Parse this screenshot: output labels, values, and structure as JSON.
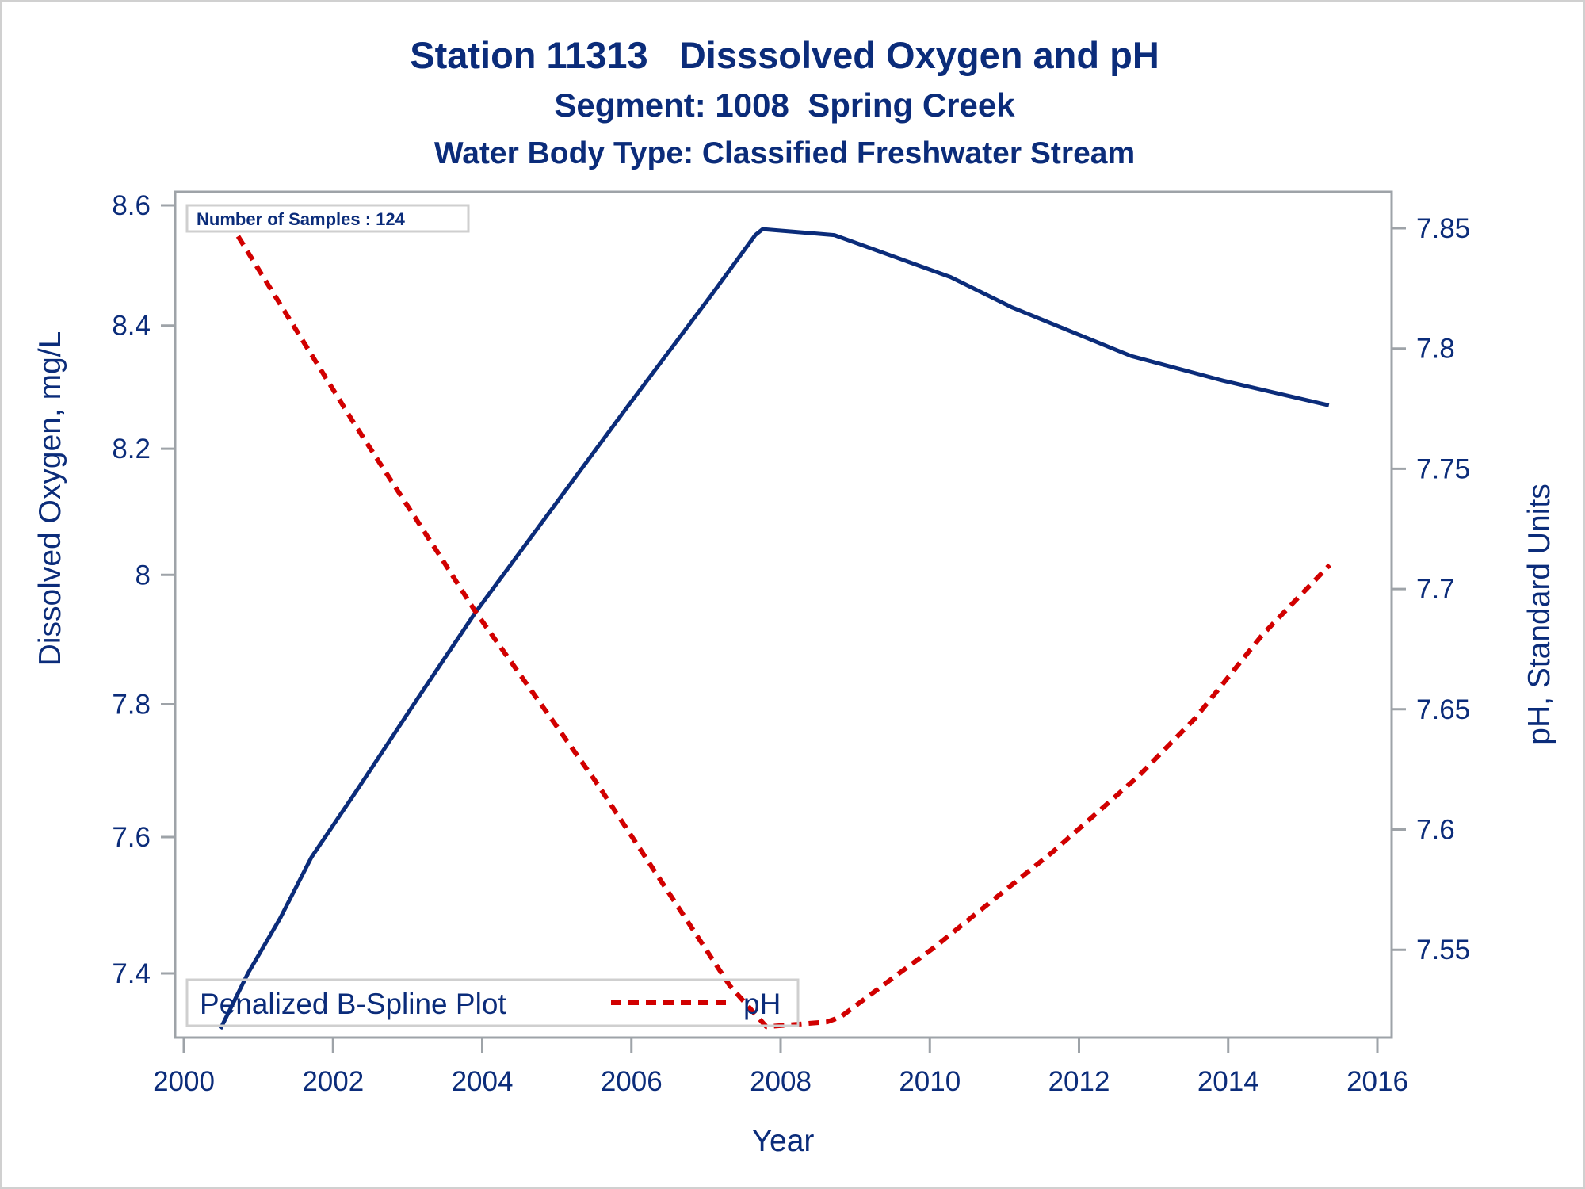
{
  "chart_data": {
    "type": "line",
    "title": "Station 11313   Disssolved Oxygen and pH",
    "subtitle": "Segment: 1008  Spring Creek",
    "subtitle2": "Water Body Type: Classified Freshwater Stream",
    "xlabel": "Year",
    "ylabel": "Dissolved Oxygen, mg/L",
    "y2label": "pH, Standard Units",
    "xlim": [
      2000,
      2016
    ],
    "ylim": [
      7.3,
      8.6
    ],
    "y_scale": "log",
    "y2lim": [
      7.515,
      7.865
    ],
    "x_ticks": [
      "2000",
      "2002",
      "2004",
      "2006",
      "2008",
      "2010",
      "2012",
      "2014",
      "2016"
    ],
    "y_ticks": [
      "7.4",
      "7.6",
      "7.8",
      "8",
      "8.2",
      "8.4",
      "8.6"
    ],
    "y2_ticks": [
      "7.55",
      "7.6",
      "7.65",
      "7.7",
      "7.75",
      "7.8",
      "7.85"
    ],
    "grid": false,
    "annotation": "Number of Samples : 124",
    "legend": {
      "title": "Penalized B-Spline Plot",
      "placement": "bottom-left",
      "entries": [
        {
          "name": "pH",
          "style": "dashed",
          "color": "#d10000"
        }
      ]
    },
    "series": [
      {
        "name": "Dissolved Oxygen",
        "axis": "left",
        "style": "solid",
        "color": "#0b2c7a",
        "x": [
          2000.49,
          2000.86,
          2001.29,
          2001.71,
          2002.32,
          2003.14,
          2003.9,
          2004.47,
          2005.9,
          2007.07,
          2007.66,
          2007.76,
          2008.72,
          2010.28,
          2011.1,
          2012.7,
          2013.93,
          2015.35
        ],
        "y": [
          7.32,
          7.4,
          7.48,
          7.57,
          7.67,
          7.81,
          7.94,
          8.03,
          8.26,
          8.45,
          8.55,
          8.56,
          8.55,
          8.48,
          8.43,
          8.35,
          8.31,
          8.27
        ]
      },
      {
        "name": "pH",
        "axis": "right",
        "style": "dashed",
        "color": "#d10000",
        "x": [
          2000.48,
          2002.28,
          2003.45,
          2003.9,
          2005.52,
          2007.32,
          2007.81,
          2008.62,
          2008.8,
          2009.58,
          2010.06,
          2011.66,
          2012.79,
          2013.55,
          2014.46,
          2015.36
        ],
        "y": [
          7.859,
          7.769,
          7.713,
          7.691,
          7.62,
          7.535,
          7.518,
          7.52,
          7.522,
          7.54,
          7.551,
          7.591,
          7.622,
          7.646,
          7.681,
          7.71
        ]
      }
    ]
  }
}
